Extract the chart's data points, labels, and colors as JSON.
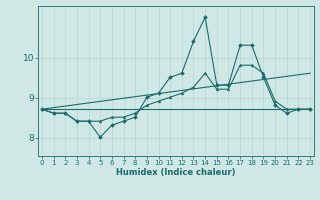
{
  "title": "",
  "xlabel": "Humidex (Indice chaleur)",
  "ylabel": "",
  "bg_color": "#cfe8e5",
  "line_color": "#1a6b6b",
  "grid_color": "#b8d4d0",
  "x_ticks": [
    0,
    1,
    2,
    3,
    4,
    5,
    6,
    7,
    8,
    9,
    10,
    11,
    12,
    13,
    14,
    15,
    16,
    17,
    18,
    19,
    20,
    21,
    22,
    23
  ],
  "y_ticks": [
    8,
    9,
    10
  ],
  "xlim": [
    -0.3,
    23.3
  ],
  "ylim": [
    7.55,
    11.3
  ],
  "line1_x": [
    0,
    1,
    2,
    3,
    4,
    5,
    6,
    7,
    8,
    9,
    10,
    11,
    12,
    13,
    14,
    15,
    16,
    17,
    18,
    19,
    20,
    21,
    22,
    23
  ],
  "line1_y": [
    8.72,
    8.62,
    8.62,
    8.42,
    8.42,
    8.02,
    8.32,
    8.42,
    8.52,
    9.02,
    9.12,
    9.52,
    9.62,
    10.42,
    11.02,
    9.32,
    9.32,
    10.32,
    10.32,
    9.52,
    8.82,
    8.62,
    8.72,
    8.72
  ],
  "line2_x": [
    0,
    1,
    2,
    3,
    4,
    5,
    6,
    7,
    8,
    9,
    10,
    11,
    12,
    13,
    14,
    15,
    16,
    17,
    18,
    19,
    20,
    21,
    22,
    23
  ],
  "line2_y": [
    8.72,
    8.62,
    8.62,
    8.42,
    8.42,
    8.42,
    8.52,
    8.52,
    8.62,
    8.82,
    8.92,
    9.02,
    9.12,
    9.27,
    9.62,
    9.22,
    9.22,
    9.82,
    9.82,
    9.62,
    8.92,
    8.72,
    8.72,
    8.72
  ],
  "line3_x": [
    0,
    23
  ],
  "line3_y": [
    8.72,
    8.72
  ],
  "line4_x": [
    0,
    23
  ],
  "line4_y": [
    8.72,
    9.62
  ]
}
